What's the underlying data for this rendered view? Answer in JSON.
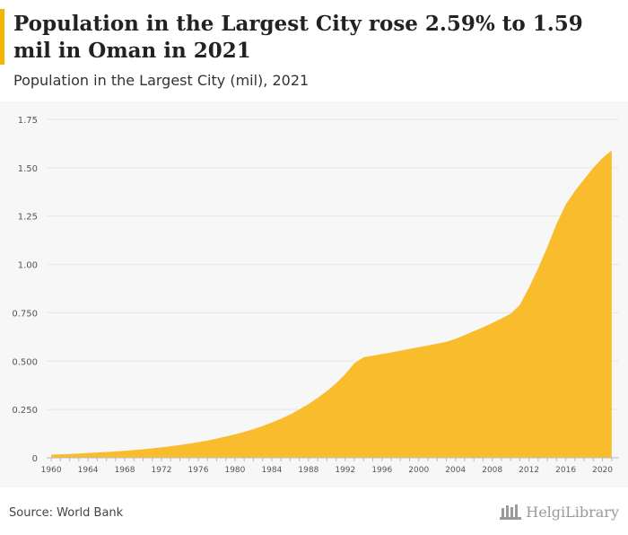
{
  "header": {
    "title": "Population in the Largest City rose 2.59% to 1.59 mil in Oman in 2021",
    "subtitle": "Population in the Largest City (mil), 2021"
  },
  "footer": {
    "source": "Source: World Bank",
    "brand": "HelgiLibrary"
  },
  "colors": {
    "fill": "#f9bc2c",
    "gridline": "#e6e6e6",
    "panel": "#f7f7f7",
    "accent": "#f5b400"
  },
  "chart_data": {
    "type": "area",
    "title": "",
    "xlabel": "",
    "ylabel": "",
    "ylim": [
      0,
      1.75
    ],
    "yticks": [
      {
        "value": 0,
        "label": "0"
      },
      {
        "value": 0.25,
        "label": "0.250"
      },
      {
        "value": 0.5,
        "label": "0.500"
      },
      {
        "value": 0.75,
        "label": "0.750"
      },
      {
        "value": 1.0,
        "label": "1.00"
      },
      {
        "value": 1.25,
        "label": "1.25"
      },
      {
        "value": 1.5,
        "label": "1.50"
      },
      {
        "value": 1.75,
        "label": "1.75"
      }
    ],
    "xticks": [
      "1960",
      "1964",
      "1968",
      "1972",
      "1976",
      "1980",
      "1984",
      "1988",
      "1992",
      "1996",
      "2000",
      "2004",
      "2008",
      "2012",
      "2016",
      "2020"
    ],
    "grid": true,
    "series": [
      {
        "name": "",
        "x": [
          1960,
          1961,
          1962,
          1963,
          1964,
          1965,
          1966,
          1967,
          1968,
          1969,
          1970,
          1971,
          1972,
          1973,
          1974,
          1975,
          1976,
          1977,
          1978,
          1979,
          1980,
          1981,
          1982,
          1983,
          1984,
          1985,
          1986,
          1987,
          1988,
          1989,
          1990,
          1991,
          1992,
          1993,
          1994,
          1995,
          1996,
          1997,
          1998,
          1999,
          2000,
          2001,
          2002,
          2003,
          2004,
          2005,
          2006,
          2007,
          2008,
          2009,
          2010,
          2011,
          2012,
          2013,
          2014,
          2015,
          2016,
          2017,
          2018,
          2019,
          2020,
          2021
        ],
        "values": [
          0.016,
          0.018,
          0.02,
          0.022,
          0.025,
          0.027,
          0.03,
          0.033,
          0.036,
          0.04,
          0.044,
          0.049,
          0.054,
          0.06,
          0.066,
          0.073,
          0.081,
          0.089,
          0.099,
          0.11,
          0.121,
          0.134,
          0.148,
          0.164,
          0.182,
          0.202,
          0.224,
          0.25,
          0.278,
          0.31,
          0.345,
          0.385,
          0.432,
          0.49,
          0.52,
          0.528,
          0.537,
          0.545,
          0.554,
          0.563,
          0.572,
          0.581,
          0.59,
          0.6,
          0.615,
          0.635,
          0.655,
          0.675,
          0.697,
          0.72,
          0.745,
          0.79,
          0.88,
          0.98,
          1.09,
          1.21,
          1.31,
          1.38,
          1.44,
          1.5,
          1.55,
          1.59
        ]
      }
    ]
  }
}
